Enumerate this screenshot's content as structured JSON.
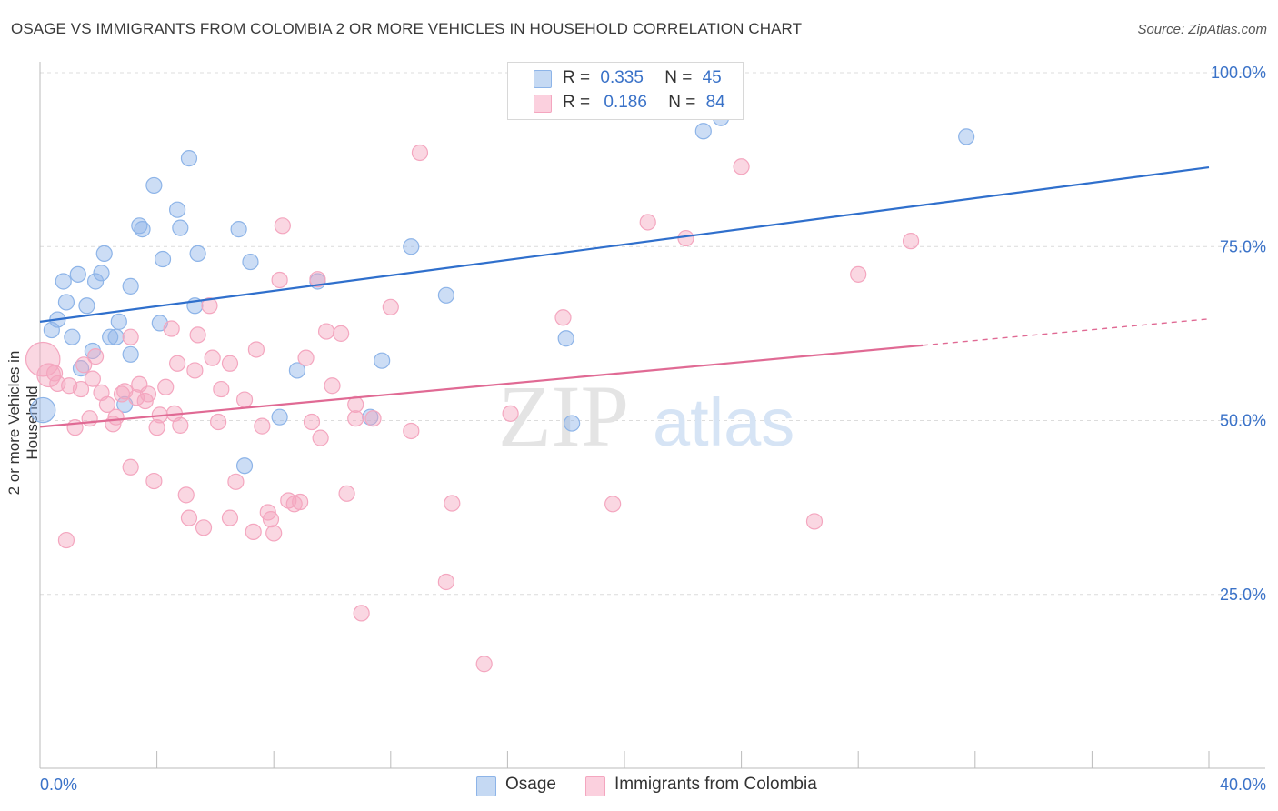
{
  "title": "OSAGE VS IMMIGRANTS FROM COLOMBIA 2 OR MORE VEHICLES IN HOUSEHOLD CORRELATION CHART",
  "source": "Source: ZipAtlas.com",
  "watermark": {
    "zip": "ZIP",
    "atlas": "atlas"
  },
  "legend": {
    "rows": [
      {
        "r_label": "R =",
        "r_value": "0.335",
        "n_label": "N =",
        "n_value": "45"
      },
      {
        "r_label": "R =",
        "r_value": "0.186",
        "n_label": "N =",
        "n_value": "84"
      }
    ]
  },
  "chart_data": {
    "type": "scatter",
    "xlabel": "",
    "ylabel": "2 or more Vehicles in Household",
    "xlim": [
      0,
      40
    ],
    "ylim": [
      0,
      105
    ],
    "x_tick_labels": [
      "0.0%",
      "40.0%"
    ],
    "y_ticks": [
      25,
      50,
      75,
      100
    ],
    "y_tick_labels": [
      "25.0%",
      "50.0%",
      "75.0%",
      "100.0%"
    ],
    "grid": true,
    "series": [
      {
        "name": "Osage",
        "color": "#8db4e8",
        "line_color": "#2f6fcc",
        "trend": {
          "x": [
            0,
            40
          ],
          "y": [
            64.2,
            86.4
          ],
          "dashed_from": null
        },
        "points": [
          [
            0.1,
            51.5,
            1.6
          ],
          [
            0.4,
            63.0,
            1
          ],
          [
            0.6,
            64.5,
            1
          ],
          [
            0.8,
            70.0,
            1
          ],
          [
            0.9,
            67.0,
            1
          ],
          [
            1.1,
            62.0,
            1
          ],
          [
            1.3,
            71.0,
            1
          ],
          [
            1.4,
            57.5,
            1
          ],
          [
            1.6,
            66.5,
            1
          ],
          [
            1.8,
            60.0,
            1
          ],
          [
            1.9,
            70.0,
            1
          ],
          [
            2.1,
            71.2,
            1
          ],
          [
            2.2,
            74.0,
            1
          ],
          [
            2.4,
            62.0,
            1
          ],
          [
            2.6,
            62.0,
            1
          ],
          [
            2.7,
            64.2,
            1
          ],
          [
            2.9,
            52.3,
            1
          ],
          [
            3.1,
            69.3,
            1
          ],
          [
            3.1,
            59.5,
            1
          ],
          [
            3.4,
            78.0,
            1
          ],
          [
            3.5,
            77.5,
            1
          ],
          [
            3.9,
            83.8,
            1
          ],
          [
            4.1,
            64.0,
            1
          ],
          [
            4.2,
            73.2,
            1
          ],
          [
            4.7,
            80.3,
            1
          ],
          [
            4.8,
            77.7,
            1
          ],
          [
            5.1,
            87.7,
            1
          ],
          [
            5.3,
            66.5,
            1
          ],
          [
            5.4,
            74.0,
            1
          ],
          [
            6.8,
            77.5,
            1
          ],
          [
            7.0,
            43.5,
            1
          ],
          [
            7.2,
            72.8,
            1
          ],
          [
            8.2,
            50.5,
            1
          ],
          [
            8.8,
            57.2,
            1
          ],
          [
            9.5,
            70.0,
            1
          ],
          [
            11.3,
            50.5,
            1
          ],
          [
            11.7,
            58.6,
            1
          ],
          [
            12.7,
            75.0,
            1
          ],
          [
            13.9,
            68.0,
            1
          ],
          [
            18.0,
            61.8,
            1
          ],
          [
            18.2,
            49.6,
            1
          ],
          [
            22.7,
            91.6,
            1
          ],
          [
            23.3,
            93.5,
            1
          ],
          [
            31.7,
            90.8,
            1
          ]
        ]
      },
      {
        "name": "Immigrants from Colombia",
        "color": "#f4a6bf",
        "line_color": "#e06a94",
        "trend": {
          "x": [
            0,
            40
          ],
          "y": [
            49.1,
            64.6
          ],
          "dashed_from": 30.2
        },
        "points": [
          [
            0.1,
            58.8,
            2.2
          ],
          [
            0.3,
            56.5,
            1.5
          ],
          [
            0.5,
            56.8,
            1
          ],
          [
            0.6,
            55.3,
            1
          ],
          [
            0.9,
            32.8,
            1
          ],
          [
            1.0,
            55.0,
            1
          ],
          [
            1.2,
            49.0,
            1
          ],
          [
            1.4,
            54.5,
            1
          ],
          [
            1.5,
            58.0,
            1
          ],
          [
            1.7,
            50.3,
            1
          ],
          [
            1.8,
            56.0,
            1
          ],
          [
            1.9,
            59.2,
            1
          ],
          [
            2.1,
            54.0,
            1
          ],
          [
            2.3,
            52.3,
            1
          ],
          [
            2.5,
            49.5,
            1
          ],
          [
            2.6,
            50.5,
            1
          ],
          [
            2.8,
            53.8,
            1
          ],
          [
            2.9,
            54.2,
            1
          ],
          [
            3.1,
            62.0,
            1
          ],
          [
            3.1,
            43.3,
            1
          ],
          [
            3.3,
            53.3,
            1
          ],
          [
            3.4,
            55.2,
            1
          ],
          [
            3.6,
            52.8,
            1
          ],
          [
            3.7,
            53.8,
            1
          ],
          [
            3.9,
            41.3,
            1
          ],
          [
            4.0,
            49.0,
            1
          ],
          [
            4.1,
            50.8,
            1
          ],
          [
            4.3,
            54.8,
            1
          ],
          [
            4.5,
            63.2,
            1
          ],
          [
            4.6,
            51.0,
            1
          ],
          [
            4.7,
            58.2,
            1
          ],
          [
            4.8,
            49.3,
            1
          ],
          [
            5.0,
            39.3,
            1
          ],
          [
            5.1,
            36.0,
            1
          ],
          [
            5.3,
            57.2,
            1
          ],
          [
            5.4,
            62.3,
            1
          ],
          [
            5.6,
            34.6,
            1
          ],
          [
            5.8,
            66.5,
            1
          ],
          [
            5.9,
            59.0,
            1
          ],
          [
            6.1,
            49.8,
            1
          ],
          [
            6.2,
            54.5,
            1
          ],
          [
            6.5,
            58.2,
            1
          ],
          [
            6.5,
            36.0,
            1
          ],
          [
            6.7,
            41.2,
            1
          ],
          [
            7.0,
            53.0,
            1
          ],
          [
            7.3,
            34.0,
            1
          ],
          [
            7.4,
            60.2,
            1
          ],
          [
            7.6,
            49.2,
            1
          ],
          [
            7.8,
            36.8,
            1
          ],
          [
            7.9,
            35.8,
            1
          ],
          [
            8.0,
            33.8,
            1
          ],
          [
            8.2,
            70.2,
            1
          ],
          [
            8.3,
            78.0,
            1
          ],
          [
            8.5,
            38.5,
            1
          ],
          [
            8.7,
            38.0,
            1
          ],
          [
            8.9,
            38.3,
            1
          ],
          [
            9.1,
            59.0,
            1
          ],
          [
            9.3,
            49.8,
            1
          ],
          [
            9.5,
            70.3,
            1
          ],
          [
            9.6,
            47.5,
            1
          ],
          [
            9.8,
            62.8,
            1
          ],
          [
            10.0,
            55.0,
            1
          ],
          [
            10.3,
            62.5,
            1
          ],
          [
            10.5,
            39.5,
            1
          ],
          [
            10.8,
            52.3,
            1
          ],
          [
            10.8,
            50.3,
            1
          ],
          [
            11.0,
            22.3,
            1
          ],
          [
            11.4,
            50.3,
            1
          ],
          [
            12.0,
            66.3,
            1
          ],
          [
            12.7,
            48.5,
            1
          ],
          [
            13.0,
            88.5,
            1
          ],
          [
            13.9,
            26.8,
            1
          ],
          [
            14.1,
            38.1,
            1
          ],
          [
            15.2,
            15.0,
            1
          ],
          [
            16.1,
            51.0,
            1
          ],
          [
            17.9,
            64.8,
            1
          ],
          [
            19.6,
            38.0,
            1
          ],
          [
            20.8,
            78.5,
            1
          ],
          [
            22.1,
            76.2,
            1
          ],
          [
            24.0,
            86.5,
            1
          ],
          [
            26.5,
            35.5,
            1
          ],
          [
            28.0,
            71.0,
            1
          ],
          [
            29.8,
            75.8,
            1
          ]
        ]
      }
    ]
  }
}
